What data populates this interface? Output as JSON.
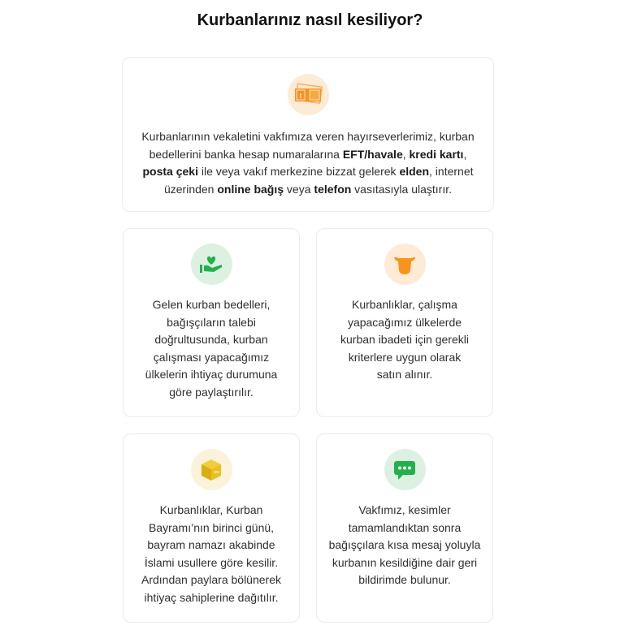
{
  "title": "Kurbanlarınız nasıl kesiliyor?",
  "colors": {
    "orange": "#f7941d",
    "orange_bg": "#fdebd6",
    "green": "#22b04b",
    "green_bg": "#dcf1e2",
    "yellow": "#e3b81c",
    "yellow_bg": "#fbf3d9"
  },
  "cards": [
    {
      "icon": "money-payment-icon",
      "segments": [
        {
          "t": "Kurbanlarının vekaletini vakfımıza veren hayırseverlerimiz, kurban bedellerini banka hesap numaralarına "
        },
        {
          "t": "EFT/havale",
          "b": true
        },
        {
          "t": ", "
        },
        {
          "t": "kredi kartı",
          "b": true
        },
        {
          "t": ", "
        },
        {
          "t": "posta çeki",
          "b": true
        },
        {
          "t": " ile veya vakıf merkezine bizzat gelerek "
        },
        {
          "t": "elden",
          "b": true
        },
        {
          "t": ", internet üzerinden "
        },
        {
          "t": "online bağış",
          "b": true
        },
        {
          "t": " veya "
        },
        {
          "t": "telefon",
          "b": true
        },
        {
          "t": " vasıtasıyla ulaştırır."
        }
      ]
    },
    {
      "icon": "hand-heart-icon",
      "segments": [
        {
          "t": "Gelen kurban bedelleri, bağışçıların talebi doğrultusunda, kurban çalışması yapacağımız ülkelerin ihtiyaç durumuna göre paylaştırılır."
        }
      ]
    },
    {
      "icon": "cow-head-icon",
      "segments": [
        {
          "t": "Kurbanlıklar, çalışma yapacağımız ülkelerde kurban ibadeti için gerekli kriterlere uygun olarak satın alınır."
        }
      ]
    },
    {
      "icon": "package-box-icon",
      "segments": [
        {
          "t": "Kurbanlıklar, Kurban Bayramı’nın birinci günü, bayram namazı akabinde İslami usullere göre kesilir. Ardından paylara bölünerek ihtiyaç sahiplerine dağıtılır."
        }
      ]
    },
    {
      "icon": "chat-message-icon",
      "segments": [
        {
          "t": "Vakfımız, kesimler tamamlandıktan sonra bağışçılara kısa mesaj yoluyla kurbanın kesildiğine dair geri bildirimde bulunur."
        }
      ]
    }
  ]
}
